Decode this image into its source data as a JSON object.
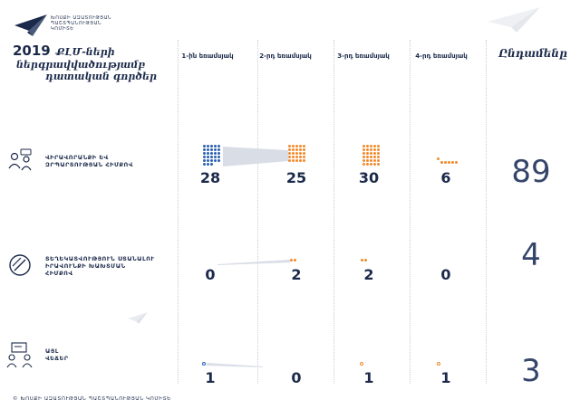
{
  "brand": {
    "org_line1": "ԽՈՍՔԻ ԱԶԱՏՈՒԹՅԱՆ",
    "org_line2": "ՊԱՇՏՊԱՆՈՒԹՅԱՆ",
    "org_line3": "ԿՈՄԻՏԵ"
  },
  "title": {
    "year": "2019",
    "line1_rest": "ՔԼՄ-ների",
    "line2": "ներգրավվածությամբ",
    "line3": "դատական գործեր"
  },
  "columns": [
    "1-ին եռամսյակ",
    "2-րդ եռամսյակ",
    "3-րդ եռամսյակ",
    "4-րդ եռամսյակ"
  ],
  "total_header": "Ընդամենը",
  "rows": [
    {
      "label_line1": "ՎԻՐԱՎՈՐԱՆՔԻ ԵՎ",
      "label_line2": "ԶՐՊԱՐՏՈՒԹՅԱՆ ՀԻՄՔՈՎ",
      "label_line3": "",
      "values": [
        "28",
        "25",
        "30",
        "6"
      ],
      "total": "89",
      "icon": "people-speech-icon"
    },
    {
      "label_line1": "ՏԵՂԵԿԱՏՎՈՒԹՅՈՒՆ ՍՏԱՆԱԼՈՒ",
      "label_line2": "ԻՐԱՎՈՒՆՔԻ ԽԱԽՏՄԱՆ",
      "label_line3": "ՀԻՄՔՈՎ",
      "values": [
        "0",
        "2",
        "2",
        "0"
      ],
      "total": "4",
      "icon": "prohibited-icon"
    },
    {
      "label_line1": "ԱՅԼ",
      "label_line2": "ՎԵՃԵՐ",
      "label_line3": "",
      "values": [
        "1",
        "0",
        "1",
        "1"
      ],
      "total": "3",
      "icon": "people-board-icon"
    }
  ],
  "colors": {
    "blue": "#2a5fb0",
    "orange": "#f08a2c",
    "navy": "#1b2a4a"
  },
  "footer": "© ԽՈՍՔԻ ԱԶԱՏՈՒԹՅԱՆ ՊԱՇՏՊԱՆՈՒԹՅԱՆ ԿՈՄԻՏԵ"
}
